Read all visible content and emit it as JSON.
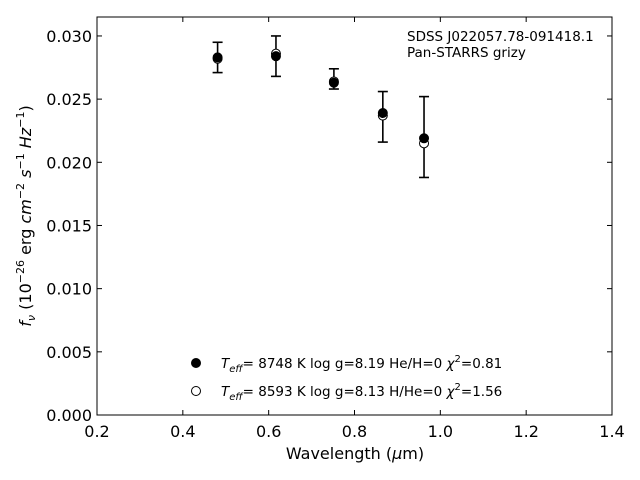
{
  "chart_data": {
    "type": "scatter",
    "xlabel": "Wavelength (μm)",
    "ylabel": "fν (10⁻²⁶ erg cm⁻² s⁻¹ Hz⁻¹)",
    "xlim": [
      0.2,
      1.4
    ],
    "ylim": [
      0.0,
      0.0315
    ],
    "xticks": [
      0.2,
      0.4,
      0.6,
      0.8,
      1.0,
      1.2,
      1.4
    ],
    "xtick_labels": [
      "0.2",
      "0.4",
      "0.6",
      "0.8",
      "1.0",
      "1.2",
      "1.4"
    ],
    "yticks": [
      0.0,
      0.005,
      0.01,
      0.015,
      0.02,
      0.025,
      0.03
    ],
    "ytick_labels": [
      "0.000",
      "0.005",
      "0.010",
      "0.015",
      "0.020",
      "0.025",
      "0.030"
    ],
    "annotations": [
      "SDSS J022057.78-091418.1",
      "Pan-STARRS grizy"
    ],
    "observed": {
      "x": [
        0.481,
        0.617,
        0.752,
        0.866,
        0.962
      ],
      "y": [
        0.0283,
        0.0284,
        0.0266,
        0.0236,
        0.022
      ],
      "err": [
        0.0012,
        0.0016,
        0.0008,
        0.002,
        0.0032
      ]
    },
    "series": [
      {
        "name": "T_eff= 8748 K  log g=8.19  He/H=0  χ²=0.81",
        "marker": "filled-circle",
        "x": [
          0.481,
          0.617,
          0.752,
          0.866,
          0.962
        ],
        "y": [
          0.0283,
          0.0284,
          0.0263,
          0.0239,
          0.0219
        ]
      },
      {
        "name": "T_eff= 8593 K  log g=8.13  H/He=0  χ²=1.56",
        "marker": "open-circle",
        "x": [
          0.481,
          0.617,
          0.752,
          0.866,
          0.962
        ],
        "y": [
          0.0282,
          0.0286,
          0.0264,
          0.0237,
          0.0215
        ]
      }
    ],
    "legend": [
      {
        "teff": "8748 K",
        "logg": "log g=8.19",
        "comp": "He/H=0",
        "chi": "=0.81"
      },
      {
        "teff": "8593 K",
        "logg": "log g=8.13",
        "comp": "H/He=0",
        "chi": "=1.56"
      }
    ],
    "legend_placement": "lower-center",
    "grid": false
  }
}
